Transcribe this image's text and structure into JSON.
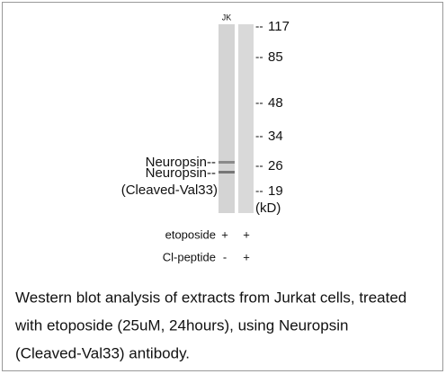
{
  "blot": {
    "lane_label": "JK",
    "markers": [
      "117",
      "85",
      "48",
      "34",
      "26",
      "19"
    ],
    "unit": "(kD)",
    "band_labels": [
      "Neuropsin--",
      "Neuropsin--",
      "(Cleaved-Val33)"
    ]
  },
  "conditions": [
    {
      "label": "etoposide",
      "lanes": [
        "+",
        "+"
      ]
    },
    {
      "label": "Cl-peptide",
      "lanes": [
        "-",
        "+"
      ]
    }
  ],
  "caption": [
    "Western blot analysis of extracts from Jurkat cells, treated",
    "with etoposide (25uM, 24hours), using Neuropsin",
    "(Cleaved-Val33) antibody."
  ]
}
